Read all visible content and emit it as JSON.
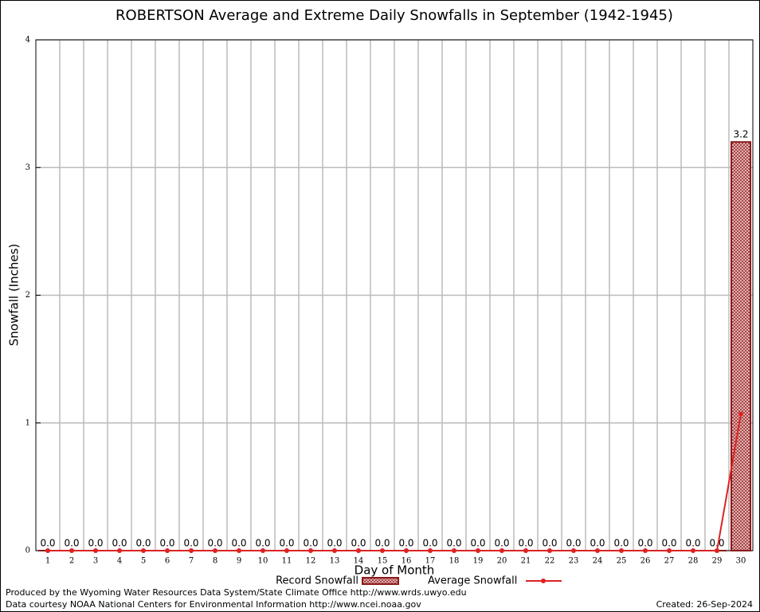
{
  "chart_data": {
    "type": "bar",
    "title": "ROBERTSON Average and Extreme Daily Snowfalls in September (1942-1945)",
    "x_label": "Day of Month",
    "y_label": "Snowfall (Inches)",
    "categories": [
      "1",
      "2",
      "3",
      "4",
      "5",
      "6",
      "7",
      "8",
      "9",
      "10",
      "11",
      "12",
      "13",
      "14",
      "15",
      "16",
      "17",
      "18",
      "19",
      "20",
      "21",
      "22",
      "23",
      "24",
      "25",
      "26",
      "27",
      "28",
      "29",
      "30"
    ],
    "series": [
      {
        "name": "Record Snowfall",
        "type": "bar",
        "color": "#8b1a1a",
        "values": [
          0,
          0,
          0,
          0,
          0,
          0,
          0,
          0,
          0,
          0,
          0,
          0,
          0,
          0,
          0,
          0,
          0,
          0,
          0,
          0,
          0,
          0,
          0,
          0,
          0,
          0,
          0,
          0,
          0,
          3.2
        ],
        "value_labels": [
          "0.0",
          "0.0",
          "0.0",
          "0.0",
          "0.0",
          "0.0",
          "0.0",
          "0.0",
          "0.0",
          "0.0",
          "0.0",
          "0.0",
          "0.0",
          "0.0",
          "0.0",
          "0.0",
          "0.0",
          "0.0",
          "0.0",
          "0.0",
          "0.0",
          "0.0",
          "0.0",
          "0.0",
          "0.0",
          "0.0",
          "0.0",
          "0.0",
          "0.0",
          "3.2"
        ]
      },
      {
        "name": "Average Snowfall",
        "type": "line",
        "color": "#dd2222",
        "values": [
          0,
          0,
          0,
          0,
          0,
          0,
          0,
          0,
          0,
          0,
          0,
          0,
          0,
          0,
          0,
          0,
          0,
          0,
          0,
          0,
          0,
          0,
          0,
          0,
          0,
          0,
          0,
          0,
          0,
          1.07
        ]
      }
    ],
    "ylim": [
      0,
      4
    ],
    "yticks": [
      0,
      1,
      2,
      3,
      4
    ],
    "grid": true,
    "footer_left": [
      "Produced by the Wyoming Water Resources Data System/State Climate Office http://www.wrds.uwyo.edu",
      "Data courtesy NOAA National Centers for Environmental Information http://www.ncei.noaa.gov"
    ],
    "footer_right": "Created:  26-Sep-2024"
  }
}
